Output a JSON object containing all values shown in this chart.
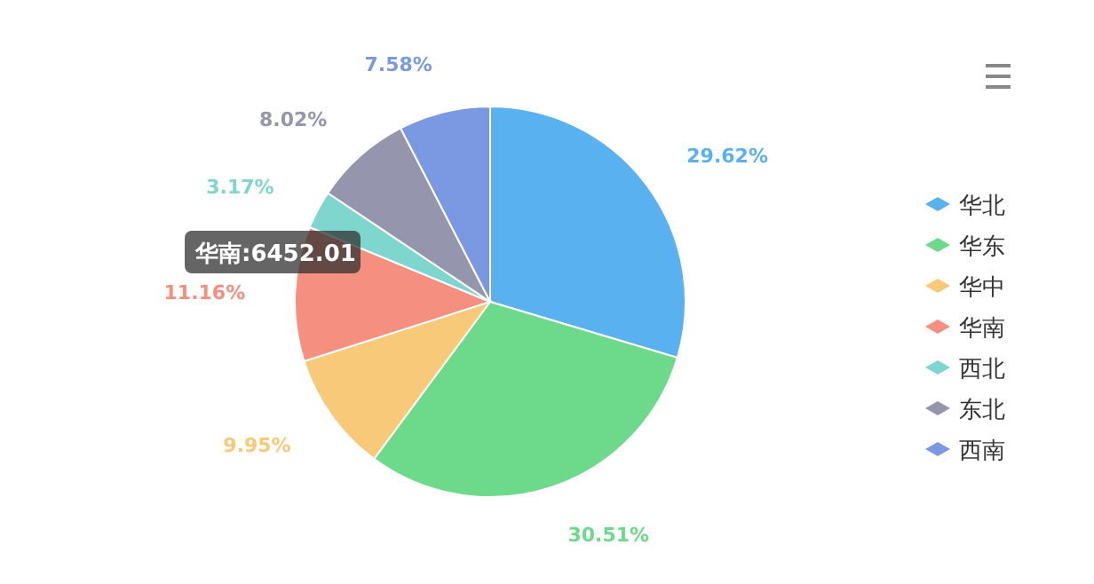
{
  "chart_data": {
    "type": "pie",
    "categories": [
      "华北",
      "华东",
      "华中",
      "华南",
      "西北",
      "东北",
      "西南"
    ],
    "values": [
      29.62,
      30.51,
      9.95,
      11.16,
      3.17,
      8.02,
      7.58
    ],
    "colors": [
      "#5ab1ef",
      "#6dd98a",
      "#f7c978",
      "#f58f80",
      "#7fd6cf",
      "#9595ad",
      "#7b99e3"
    ],
    "value_labels": [
      "29.62%",
      "30.51%",
      "9.95%",
      "11.16%",
      "3.17%",
      "8.02%",
      "7.58%"
    ],
    "legend": "right",
    "annotations": [
      "华南:6452.01"
    ]
  }
}
